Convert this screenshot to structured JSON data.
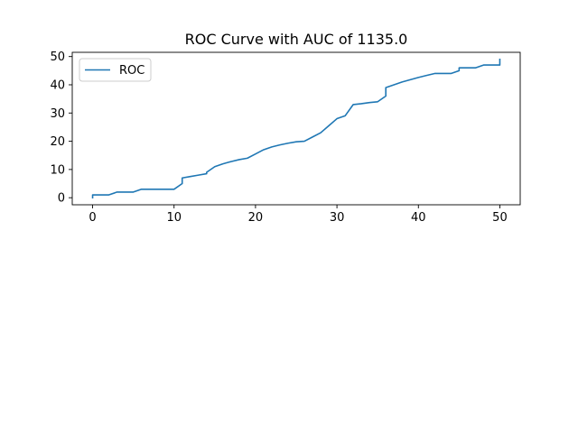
{
  "chart_data": {
    "type": "line",
    "title": "ROC Curve with AUC of 1135.0",
    "xlabel": "",
    "ylabel": "",
    "xlim": [
      -2.5,
      52.5
    ],
    "ylim": [
      -2.5,
      51.5
    ],
    "xticks": [
      0,
      10,
      20,
      30,
      40,
      50
    ],
    "yticks": [
      0,
      10,
      20,
      30,
      40,
      50
    ],
    "grid": false,
    "legend_position": "upper-left",
    "colors": {
      "line": "#1f77b4",
      "axes": "#000000",
      "legend_border": "#cccccc"
    },
    "series": [
      {
        "name": "ROC",
        "x": [
          0,
          0,
          1,
          2,
          3,
          4,
          5,
          6,
          7,
          8,
          9,
          10,
          11,
          11,
          12,
          13,
          14,
          14,
          15,
          16,
          17,
          18,
          19,
          20,
          21,
          22,
          23,
          24,
          25,
          26,
          27,
          28,
          29,
          30,
          31,
          32,
          33,
          34,
          35,
          36,
          36,
          37,
          38,
          39,
          40,
          41,
          42,
          43,
          44,
          45,
          45,
          46,
          47,
          48,
          49,
          50,
          50
        ],
        "y": [
          0,
          1,
          1,
          1,
          2,
          2,
          2,
          3,
          3,
          3,
          3,
          3,
          5,
          7,
          7.5,
          8,
          8.5,
          9,
          11,
          12,
          12.8,
          13.5,
          14,
          15.5,
          17,
          18,
          18.7,
          19.3,
          19.8,
          20,
          21.5,
          23,
          25.5,
          28,
          29,
          33,
          33.3,
          33.7,
          34,
          36,
          39,
          40,
          41,
          41.8,
          42.6,
          43.3,
          44,
          44,
          44,
          45,
          46,
          46,
          46,
          47,
          47,
          47,
          49
        ]
      }
    ]
  }
}
